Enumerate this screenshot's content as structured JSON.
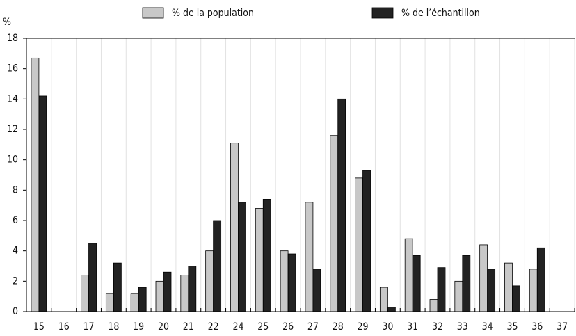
{
  "chart_data": {
    "type": "bar",
    "y_label": "%",
    "categories": [
      "15",
      "16",
      "17",
      "18",
      "19",
      "20",
      "21",
      "22",
      "24",
      "25",
      "26",
      "27",
      "28",
      "29",
      "30",
      "31",
      "32",
      "33",
      "34",
      "35",
      "36",
      "37"
    ],
    "series": [
      {
        "name": "% de la population",
        "color": "#c8c8c8",
        "values": [
          16.7,
          0,
          2.4,
          1.2,
          1.2,
          2.0,
          2.4,
          4.0,
          11.1,
          6.8,
          4.0,
          7.2,
          11.6,
          8.8,
          1.6,
          4.8,
          0.8,
          2.0,
          4.4,
          3.2,
          2.8,
          0
        ]
      },
      {
        "name": "% de l’échantillon",
        "color": "#222222",
        "values": [
          14.2,
          0,
          4.5,
          3.2,
          1.6,
          2.6,
          3.0,
          6.0,
          7.2,
          7.4,
          3.8,
          2.8,
          14.0,
          9.3,
          0.3,
          3.7,
          2.9,
          3.7,
          2.8,
          1.7,
          4.2,
          0
        ]
      }
    ],
    "ylim": [
      0,
      18
    ],
    "yticks": [
      0,
      2,
      4,
      6,
      8,
      10,
      12,
      14,
      16,
      18
    ]
  }
}
